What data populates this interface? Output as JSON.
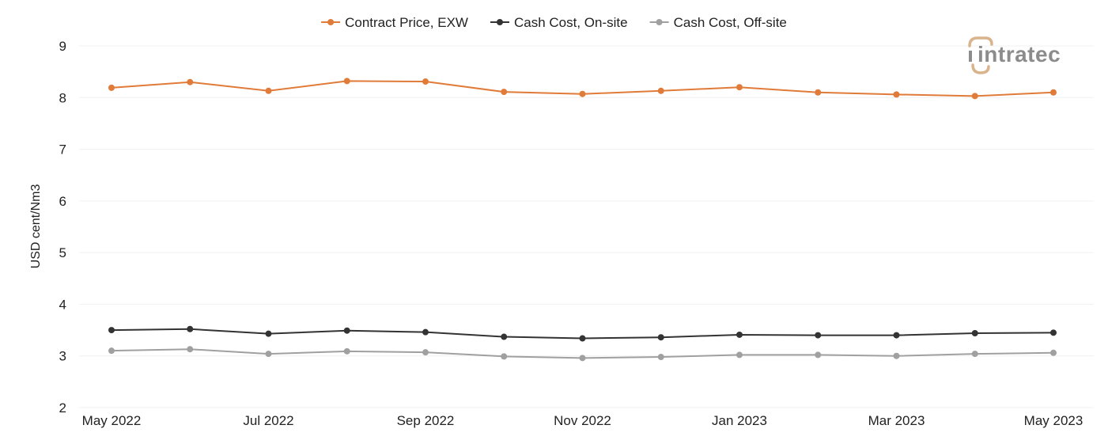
{
  "chart_data": {
    "type": "line",
    "title": "",
    "ylabel": "USD cent/Nm3",
    "xlabel": "",
    "ylim": [
      2,
      9
    ],
    "yticks": [
      2,
      3,
      4,
      5,
      6,
      7,
      8,
      9
    ],
    "grid": true,
    "legend_position": "top-center",
    "x": [
      "May 2022",
      "Jun 2022",
      "Jul 2022",
      "Aug 2022",
      "Sep 2022",
      "Oct 2022",
      "Nov 2022",
      "Dec 2022",
      "Jan 2023",
      "Feb 2023",
      "Mar 2023",
      "Apr 2023",
      "May 2023"
    ],
    "x_tick_labels": [
      "May 2022",
      "",
      "Jul 2022",
      "",
      "Sep 2022",
      "",
      "Nov 2022",
      "",
      "Jan 2023",
      "",
      "Mar 2023",
      "",
      "May 2023"
    ],
    "series": [
      {
        "name": "Contract Price, EXW",
        "color": "#e07b39",
        "values": [
          8.19,
          8.3,
          8.13,
          8.32,
          8.31,
          8.11,
          8.07,
          8.13,
          8.2,
          8.1,
          8.06,
          8.03,
          8.1
        ]
      },
      {
        "name": "Cash Cost, On-site",
        "color": "#333333",
        "values": [
          3.5,
          3.52,
          3.43,
          3.49,
          3.46,
          3.37,
          3.34,
          3.36,
          3.41,
          3.4,
          3.4,
          3.44,
          3.45
        ]
      },
      {
        "name": "Cash Cost, Off-site",
        "color": "#a0a0a0",
        "values": [
          3.1,
          3.13,
          3.04,
          3.09,
          3.07,
          2.99,
          2.96,
          2.98,
          3.02,
          3.02,
          3.0,
          3.04,
          3.06
        ]
      }
    ]
  },
  "watermark": {
    "text": "intratec",
    "icon": "intratec-logo-icon",
    "color": "#d9b38c"
  }
}
